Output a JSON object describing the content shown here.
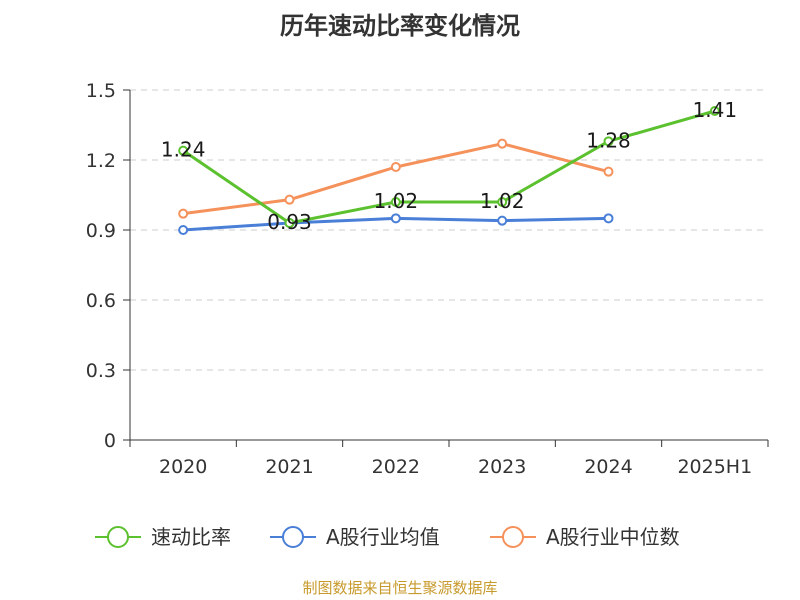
{
  "chart_data": {
    "type": "line",
    "title": "历年速动比率变化情况",
    "categories": [
      "2020",
      "2021",
      "2022",
      "2023",
      "2024",
      "2025H1"
    ],
    "ylim": [
      0,
      1.5
    ],
    "yticks": [
      "0",
      "0.3",
      "0.6",
      "0.9",
      "1.2",
      "1.5"
    ],
    "ytick_values": [
      0,
      0.3,
      0.6,
      0.9,
      1.2,
      1.5
    ],
    "grid": true,
    "legend_position": "bottom",
    "series": [
      {
        "name": "速动比率",
        "color": "#5cc12f",
        "values": [
          1.24,
          0.93,
          1.02,
          1.02,
          1.28,
          1.41
        ],
        "labels": [
          "1.24",
          "0.93",
          "1.02",
          "1.02",
          "1.28",
          "1.41"
        ]
      },
      {
        "name": "A股行业均值",
        "color": "#4a7fd8",
        "values": [
          0.9,
          0.93,
          0.95,
          0.94,
          0.95,
          null
        ]
      },
      {
        "name": "A股行业中位数",
        "color": "#f5915a",
        "values": [
          0.97,
          1.03,
          1.17,
          1.27,
          1.15,
          null
        ]
      }
    ]
  },
  "source": "制图数据来自恒生聚源数据库"
}
